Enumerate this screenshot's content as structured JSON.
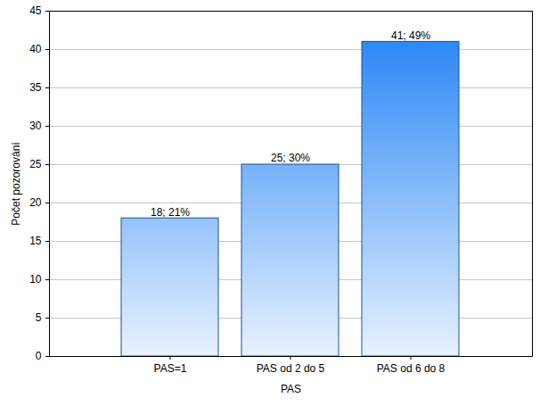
{
  "chart_data": {
    "type": "bar",
    "categories": [
      "PAS=1",
      "PAS od 2 do 5",
      "PAS od 6 do 8"
    ],
    "values": [
      18,
      25,
      41
    ],
    "value_labels": [
      "18; 21%",
      "25; 30%",
      "41; 49%"
    ],
    "data_labels": true,
    "color": "#1a7ef5",
    "x_label": "PAS",
    "y_label": "Počet pozorování",
    "ylim": [
      0,
      45
    ],
    "yticks": [
      0,
      5,
      10,
      15,
      20,
      25,
      30,
      35,
      40,
      45
    ],
    "grid": true
  }
}
